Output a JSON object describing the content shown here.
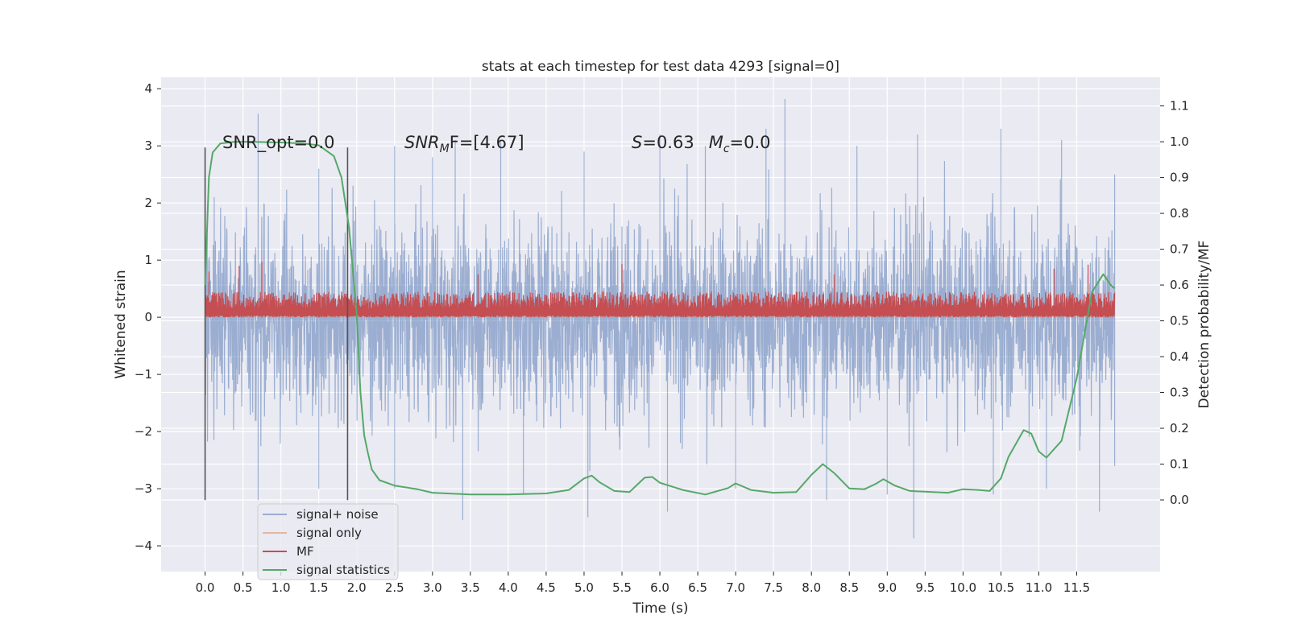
{
  "chart_data": {
    "type": "line",
    "title": "stats at each timestep for test data 4293 [signal=0]",
    "xlabel": "Time (s)",
    "ylabel": "Whitened strain",
    "y2label": "Detection probability/MF",
    "xlim": [
      -0.58,
      12.6
    ],
    "ylim": [
      -4.45,
      4.2
    ],
    "y2lim": [
      -0.2,
      1.18
    ],
    "x_ticks": [
      "0.0",
      "0.5",
      "1.0",
      "1.5",
      "2.0",
      "2.5",
      "3.0",
      "3.5",
      "4.0",
      "4.5",
      "5.0",
      "5.5",
      "6.0",
      "6.5",
      "7.0",
      "7.5",
      "8.0",
      "8.5",
      "9.0",
      "9.5",
      "10.0",
      "10.5",
      "11.0",
      "11.5"
    ],
    "y_ticks": [
      "4",
      "3",
      "2",
      "1",
      "0",
      "−1",
      "−2",
      "−3",
      "−4"
    ],
    "y2_ticks": [
      "1.1",
      "1.0",
      "0.9",
      "0.8",
      "0.7",
      "0.6",
      "0.5",
      "0.4",
      "0.3",
      "0.2",
      "0.1",
      "0.0"
    ],
    "grid": true,
    "legend_position": "lower-left",
    "annotations": {
      "snr_opt": "SNR_opt=0.0",
      "snr_mf_base": "SNR",
      "snr_mf_sub": "M",
      "snr_mf_rest": "F=[4.67]",
      "s_label": "S",
      "s_value": "=0.63",
      "mc_label": "M",
      "mc_sub": "c",
      "mc_value": "=0.0"
    },
    "vlines": [
      0.0,
      1.88
    ],
    "vline_range": [
      -3.2,
      2.97
    ],
    "series": [
      {
        "name": "signal+ noise",
        "color": "#4c72b0",
        "axis": "left",
        "x_range": [
          0.0,
          12.0
        ],
        "envelope_pos": [
          [
            0.0,
            2.4
          ],
          [
            0.7,
            3.56
          ],
          [
            1.5,
            2.6
          ],
          [
            2.5,
            3.0
          ],
          [
            3.0,
            2.8
          ],
          [
            3.3,
            3.1
          ],
          [
            3.9,
            3.1
          ],
          [
            5.0,
            2.9
          ],
          [
            6.0,
            3.2
          ],
          [
            6.6,
            3.0
          ],
          [
            7.4,
            3.3
          ],
          [
            7.65,
            3.82
          ],
          [
            8.6,
            3.0
          ],
          [
            9.4,
            3.2
          ],
          [
            10.5,
            3.3
          ],
          [
            11.3,
            3.1
          ],
          [
            12.0,
            2.5
          ]
        ],
        "envelope_neg": [
          [
            0.0,
            -3.2
          ],
          [
            0.7,
            -3.2
          ],
          [
            1.5,
            -3.0
          ],
          [
            2.5,
            -3.0
          ],
          [
            3.4,
            -3.55
          ],
          [
            4.2,
            -3.1
          ],
          [
            5.05,
            -3.5
          ],
          [
            6.1,
            -3.4
          ],
          [
            7.0,
            -3.0
          ],
          [
            8.2,
            -3.2
          ],
          [
            9.0,
            -3.1
          ],
          [
            9.35,
            -3.87
          ],
          [
            10.4,
            -3.1
          ],
          [
            11.1,
            -3.0
          ],
          [
            11.8,
            -3.4
          ],
          [
            12.0,
            -2.6
          ]
        ]
      },
      {
        "name": "signal only",
        "color": "#dd8452",
        "axis": "left",
        "x": [
          0.0,
          12.0
        ],
        "y": [
          0.0,
          0.0
        ]
      },
      {
        "name": "MF",
        "color": "#c44e52",
        "axis": "left",
        "x_range": [
          0.0,
          12.0
        ],
        "baseline": 0.0,
        "typical_level": 0.45,
        "spike_peaks": [
          [
            0.05,
            0.8
          ],
          [
            0.45,
            0.9
          ],
          [
            0.75,
            0.97
          ],
          [
            3.6,
            0.75
          ],
          [
            5.5,
            0.93
          ],
          [
            8.3,
            0.75
          ],
          [
            11.2,
            0.85
          ],
          [
            11.65,
            0.92
          ]
        ]
      },
      {
        "name": "signal statistics",
        "color": "#55a868",
        "axis": "right",
        "x": [
          0.0,
          0.05,
          0.1,
          0.2,
          0.4,
          0.6,
          1.0,
          1.3,
          1.5,
          1.6,
          1.7,
          1.8,
          1.9,
          2.0,
          2.05,
          2.1,
          2.15,
          2.2,
          2.3,
          2.5,
          2.8,
          3.0,
          3.5,
          4.0,
          4.5,
          4.8,
          5.0,
          5.1,
          5.2,
          5.4,
          5.6,
          5.8,
          5.9,
          6.0,
          6.3,
          6.6,
          6.9,
          7.0,
          7.2,
          7.5,
          7.8,
          8.0,
          8.15,
          8.3,
          8.5,
          8.7,
          8.85,
          8.95,
          9.1,
          9.3,
          9.6,
          9.8,
          10.0,
          10.2,
          10.35,
          10.5,
          10.6,
          10.8,
          10.9,
          11.0,
          11.1,
          11.3,
          11.5,
          11.7,
          11.85,
          11.95,
          12.0
        ],
        "y": [
          0.6,
          0.9,
          0.97,
          0.995,
          1.0,
          1.0,
          0.998,
          0.995,
          0.99,
          0.975,
          0.96,
          0.9,
          0.76,
          0.52,
          0.3,
          0.18,
          0.13,
          0.085,
          0.055,
          0.04,
          0.03,
          0.02,
          0.015,
          0.015,
          0.018,
          0.028,
          0.06,
          0.068,
          0.05,
          0.025,
          0.022,
          0.062,
          0.064,
          0.048,
          0.028,
          0.015,
          0.033,
          0.046,
          0.028,
          0.02,
          0.022,
          0.07,
          0.1,
          0.075,
          0.032,
          0.03,
          0.045,
          0.058,
          0.04,
          0.025,
          0.022,
          0.02,
          0.03,
          0.028,
          0.025,
          0.06,
          0.12,
          0.195,
          0.185,
          0.135,
          0.118,
          0.165,
          0.34,
          0.58,
          0.63,
          0.6,
          0.59
        ]
      }
    ]
  }
}
